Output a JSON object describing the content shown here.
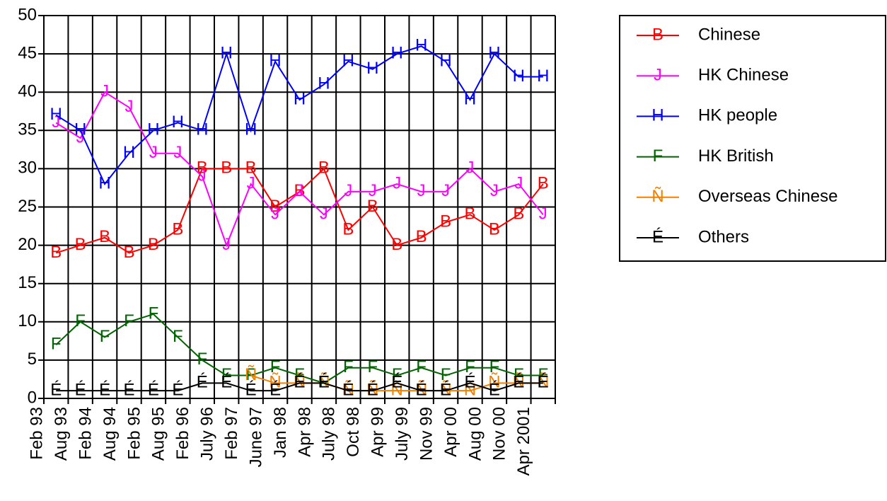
{
  "chart_data": {
    "type": "line",
    "categories": [
      "Feb 93",
      "Aug 93",
      "Feb 94",
      "Aug 94",
      "Feb 95",
      "Aug 95",
      "Feb 96",
      "July 96",
      "Feb 97",
      "June 97",
      "Jan 98",
      "Apr 98",
      "July 98",
      "Oct 98",
      "Apr 99",
      "July 99",
      "Nov 99",
      "Apr 00",
      "Aug 00",
      "Nov 00",
      "Apr 2001"
    ],
    "series": [
      {
        "name": "Chinese",
        "marker": "B",
        "color": "#ff0000",
        "values": [
          19,
          20,
          21,
          19,
          20,
          22,
          30,
          30,
          30,
          25,
          27,
          30,
          22,
          25,
          20,
          21,
          23,
          24,
          22,
          24,
          28
        ]
      },
      {
        "name": "HK Chinese",
        "marker": "J",
        "color": "#ff00ff",
        "values": [
          36,
          34,
          40,
          38,
          32,
          32,
          29,
          20,
          28,
          24,
          27,
          24,
          27,
          27,
          28,
          27,
          27,
          30,
          27,
          28,
          24
        ]
      },
      {
        "name": "HK people",
        "marker": "H",
        "color": "#0000ff",
        "values": [
          37,
          35,
          28,
          32,
          35,
          36,
          35,
          45,
          35,
          44,
          39,
          41,
          44,
          43,
          45,
          46,
          44,
          39,
          45,
          42,
          42
        ]
      },
      {
        "name": "HK British",
        "marker": "F",
        "color": "#006400",
        "values": [
          7,
          10,
          8,
          10,
          11,
          8,
          5,
          3,
          3,
          4,
          3,
          2,
          4,
          4,
          3,
          4,
          3,
          4,
          4,
          3,
          3
        ]
      },
      {
        "name": "Overseas Chinese",
        "marker": "Ñ",
        "color": "#f08000",
        "values": [
          null,
          null,
          null,
          null,
          null,
          null,
          null,
          null,
          3,
          2,
          2,
          2,
          1,
          1,
          1,
          1,
          1,
          1,
          2,
          2,
          2
        ]
      },
      {
        "name": "Others",
        "marker": "É",
        "color": "#000000",
        "values": [
          1,
          1,
          1,
          1,
          1,
          1,
          2,
          2,
          1,
          1,
          2,
          2,
          1,
          1,
          2,
          1,
          1,
          2,
          1,
          2,
          2
        ]
      }
    ],
    "ylim": [
      0,
      50
    ],
    "yticks": [
      0,
      5,
      10,
      15,
      20,
      25,
      30,
      35,
      40,
      45,
      50
    ],
    "grid": true,
    "legend": "right"
  }
}
